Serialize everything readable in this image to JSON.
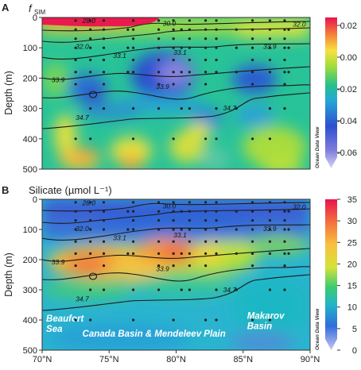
{
  "chart_data": [
    {
      "type": "heatmap",
      "panel_label": "A",
      "title_main": "f",
      "title_sub": "SIM",
      "ylabel": "Depth (m)",
      "yticks": [
        0,
        100,
        200,
        300,
        400,
        500
      ],
      "ylim": [
        0,
        500
      ],
      "xlim": [
        70,
        90
      ],
      "colorbar": {
        "min": -0.07,
        "max": 0.025,
        "ticks": [
          "0.02",
          "0.00",
          "-0.02",
          "-0.04",
          "-0.06"
        ],
        "tick_values": [
          0.02,
          0.0,
          -0.02,
          -0.04,
          -0.06
        ],
        "watermark": "Ocean Data View"
      },
      "contour_labels": [
        {
          "text": "28.0",
          "lat": 73.0,
          "depth": 10
        },
        {
          "text": "30.0",
          "lat": 79.0,
          "depth": 20
        },
        {
          "text": "32.0",
          "lat": 88.7,
          "depth": 22
        },
        {
          "text": "32.0",
          "lat": 72.5,
          "depth": 95
        },
        {
          "text": "33.1",
          "lat": 75.3,
          "depth": 125
        },
        {
          "text": "33.1",
          "lat": 79.8,
          "depth": 115
        },
        {
          "text": "33.9",
          "lat": 86.5,
          "depth": 95
        },
        {
          "text": "33.9",
          "lat": 70.7,
          "depth": 205
        },
        {
          "text": "33.9",
          "lat": 78.5,
          "depth": 228
        },
        {
          "text": "34.7",
          "lat": 72.5,
          "depth": 330
        },
        {
          "text": "34.7",
          "lat": 83.5,
          "depth": 298
        }
      ]
    },
    {
      "type": "heatmap",
      "panel_label": "B",
      "title": "Silicate (µmol L⁻¹)",
      "ylabel": "Depth (m)",
      "xticks": [
        "70°N",
        "75°N",
        "80°N",
        "85°N",
        "90°N"
      ],
      "yticks": [
        0,
        100,
        200,
        300,
        400,
        500
      ],
      "ylim": [
        0,
        500
      ],
      "xlim": [
        70,
        90
      ],
      "colorbar": {
        "min": 0,
        "max": 35,
        "ticks": [
          "35",
          "30",
          "25",
          "20",
          "15",
          "10",
          "5",
          "0"
        ],
        "tick_values": [
          35,
          30,
          25,
          20,
          15,
          10,
          5,
          0
        ],
        "watermark": "Ocean Data View"
      },
      "region_labels": [
        {
          "lines": [
            "Beaufort",
            "Sea"
          ],
          "lat": 70.3,
          "depth": 440
        },
        {
          "lines": [
            "Canada Basin & Mendeleev Plain"
          ],
          "lat": 73.0,
          "depth": 455
        },
        {
          "lines": [
            "Makarov",
            "Basin"
          ],
          "lat": 85.3,
          "depth": 430
        }
      ],
      "contour_labels": [
        {
          "text": "28.0",
          "lat": 73.0,
          "depth": 12
        },
        {
          "text": "30.0",
          "lat": 79.0,
          "depth": 22
        },
        {
          "text": "32.0",
          "lat": 88.7,
          "depth": 25
        },
        {
          "text": "32.0",
          "lat": 72.5,
          "depth": 98
        },
        {
          "text": "33.1",
          "lat": 75.3,
          "depth": 128
        },
        {
          "text": "33.1",
          "lat": 79.8,
          "depth": 118
        },
        {
          "text": "33.9",
          "lat": 86.5,
          "depth": 98
        },
        {
          "text": "33.9",
          "lat": 70.7,
          "depth": 208
        },
        {
          "text": "33.9",
          "lat": 78.5,
          "depth": 230
        },
        {
          "text": "34.7",
          "lat": 72.5,
          "depth": 330
        },
        {
          "text": "34.7",
          "lat": 83.5,
          "depth": 300
        }
      ]
    }
  ]
}
